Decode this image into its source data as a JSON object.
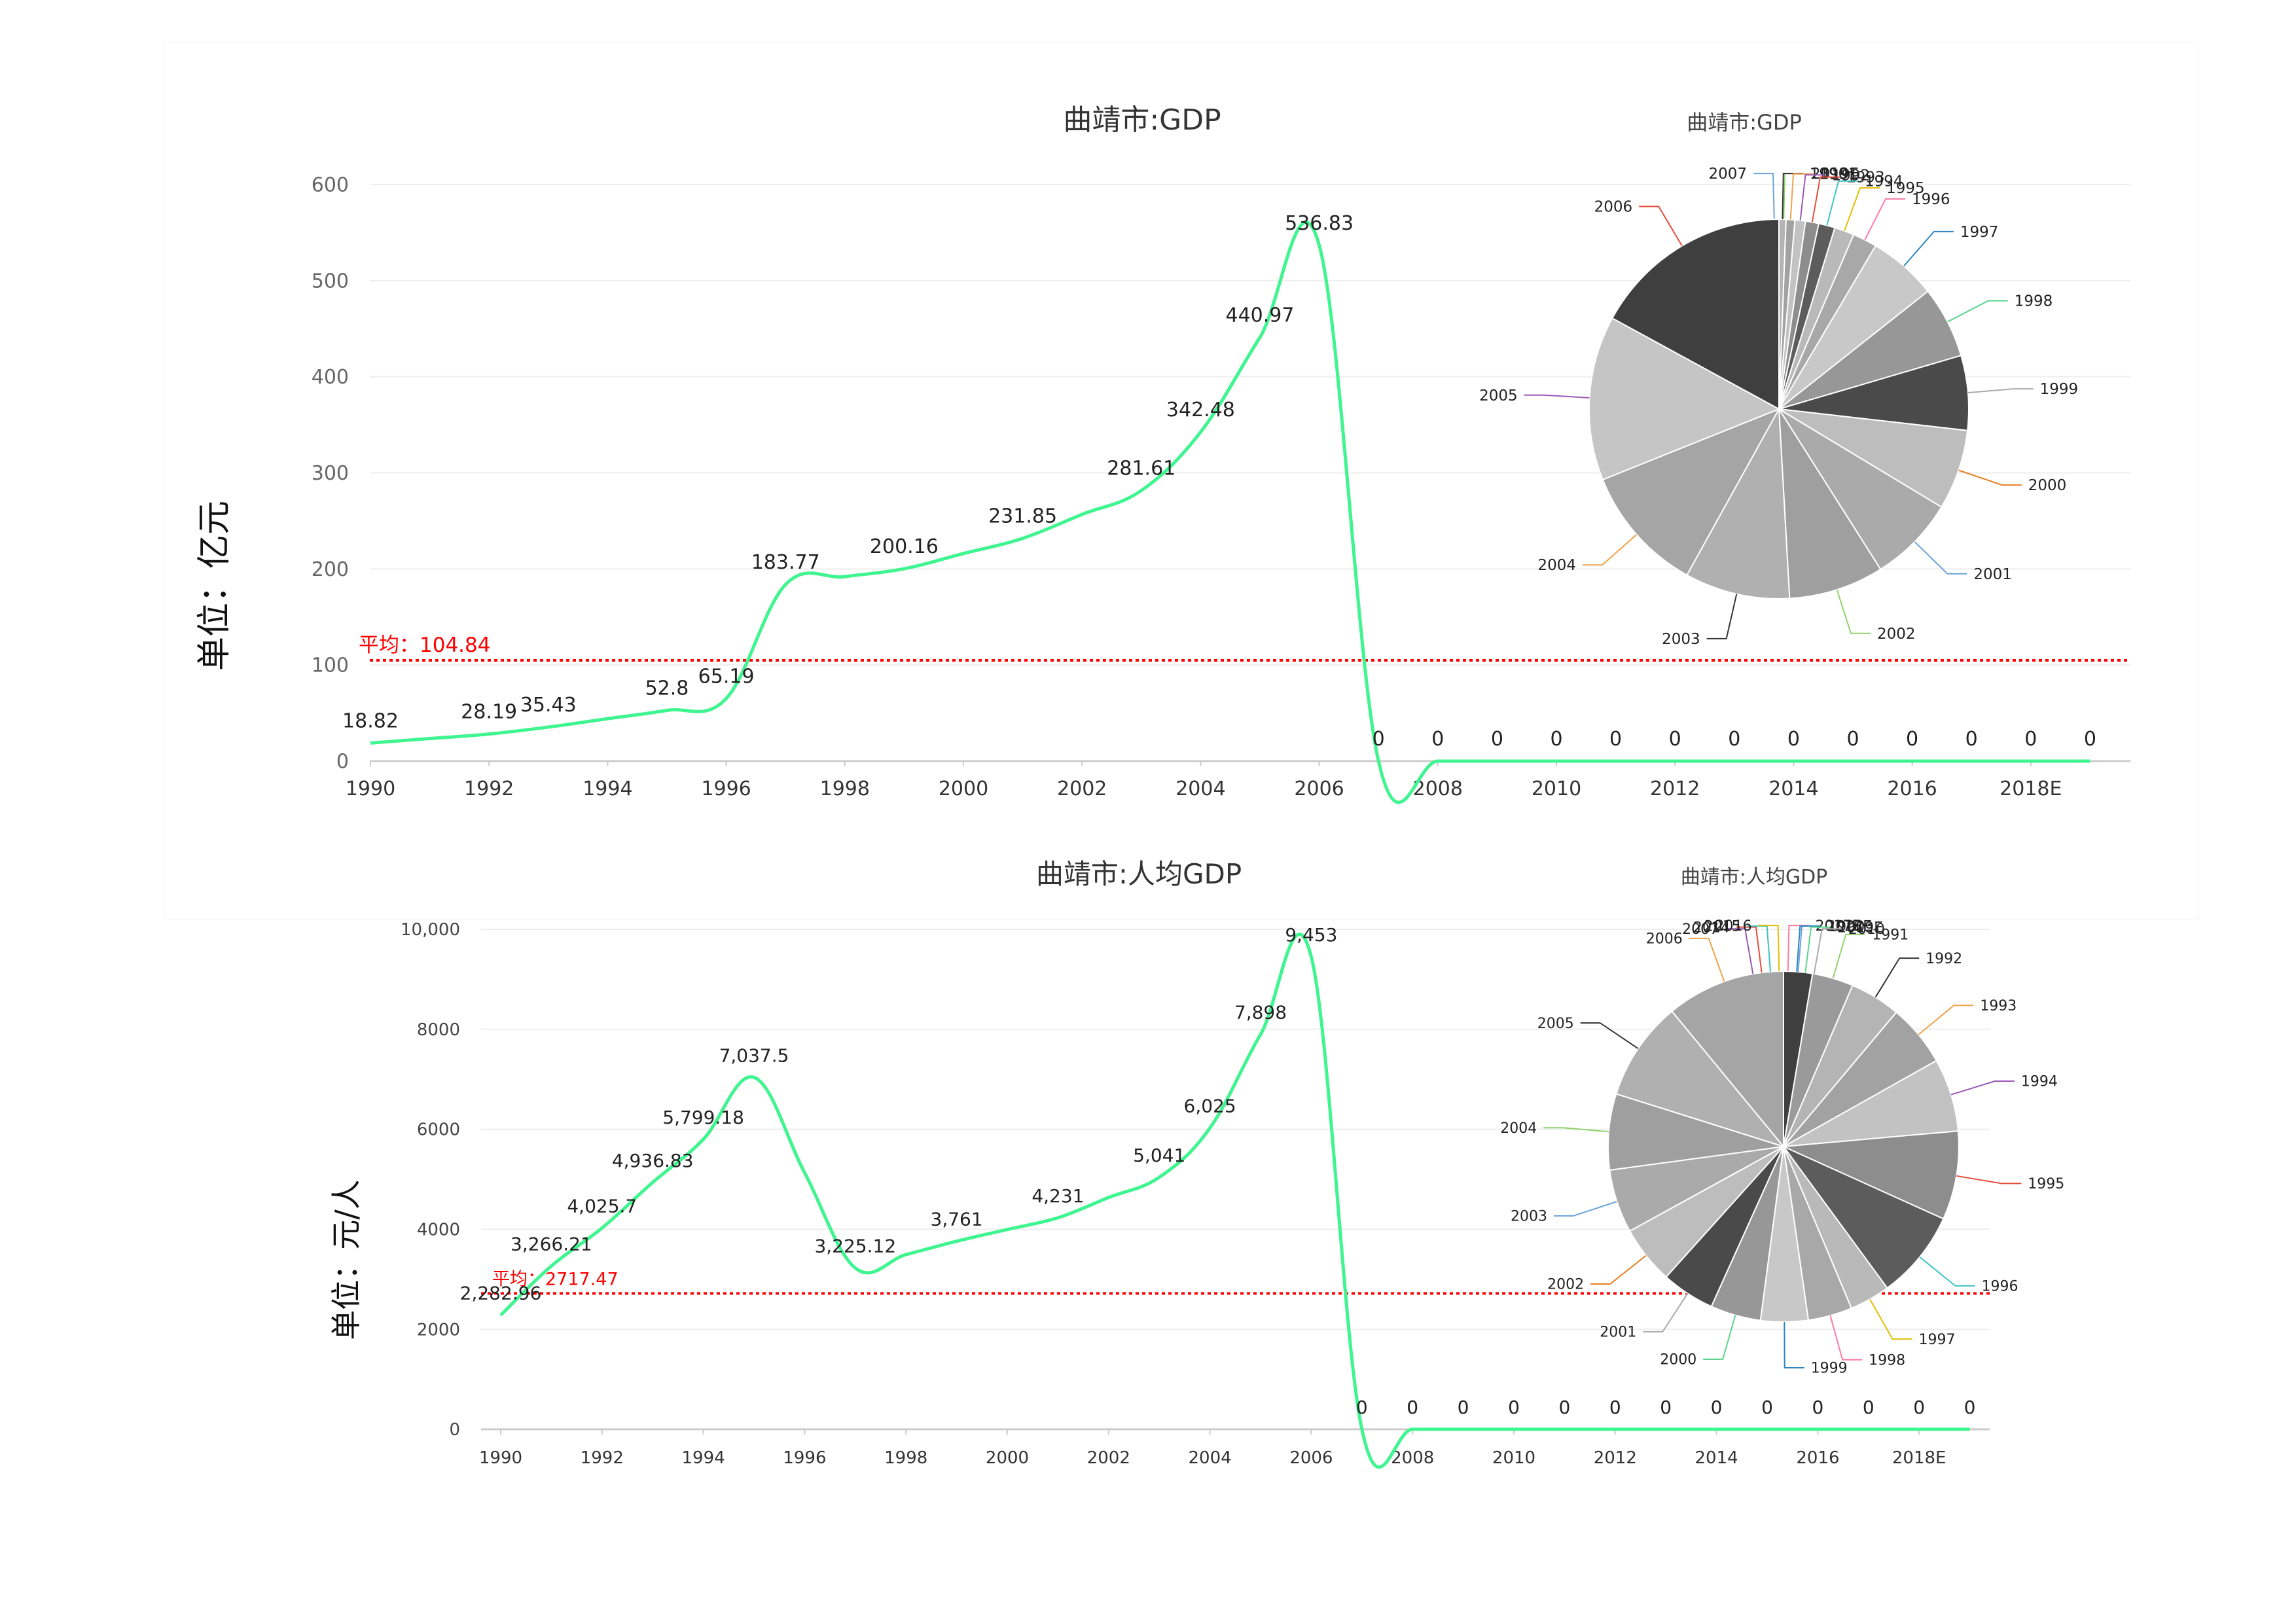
{
  "chart_data": [
    {
      "type": "line",
      "title": "曲靖市:GDP",
      "ylabel": "单位：亿元",
      "xlabel": "",
      "x": [
        "1990",
        "1991",
        "1992",
        "1993",
        "1994",
        "1995",
        "1996",
        "1997",
        "1998",
        "1999",
        "2000",
        "2001",
        "2002",
        "2003",
        "2004",
        "2005",
        "2006",
        "2007",
        "2008",
        "2009",
        "2010",
        "2011",
        "2012",
        "2013",
        "2014",
        "2015",
        "2016",
        "2017E",
        "2018E",
        "2019E"
      ],
      "values": [
        18.82,
        null,
        28.19,
        35.43,
        null,
        52.8,
        65.19,
        183.77,
        null,
        200.16,
        null,
        231.85,
        null,
        281.61,
        342.48,
        440.97,
        536.83,
        0,
        0,
        0,
        0,
        0,
        0,
        0,
        0,
        0,
        0,
        0,
        0,
        0
      ],
      "labels": [
        "18.82",
        "",
        "28.19",
        "35.43",
        "",
        "52.8",
        "65.19",
        "183.77",
        "",
        "200.16",
        "",
        "231.85",
        "",
        "281.61",
        "342.48",
        "440.97",
        "536.83",
        "0",
        "0",
        "0",
        "0",
        "0",
        "0",
        "0",
        "0",
        "0",
        "0",
        "0",
        "0",
        "0"
      ],
      "x_tick_labels": [
        "1990",
        "1992",
        "1994",
        "1996",
        "1998",
        "2000",
        "2002",
        "2004",
        "2006",
        "2008",
        "2010",
        "2012",
        "2014",
        "2016",
        "2018E"
      ],
      "y_ticks": [
        0,
        100,
        200,
        300,
        400,
        500,
        600
      ],
      "y_tick_labels": [
        "0",
        "100",
        "200",
        "300",
        "400",
        "500",
        "600"
      ],
      "ylim": [
        0,
        600
      ],
      "average": 104.84,
      "average_label": "平均：104.84",
      "grid": true,
      "colors": {
        "line": "#3ef58f",
        "average": "#ff0000"
      },
      "pie": {
        "title": "曲靖市:GDP",
        "labels": [
          "2007",
          "2019E",
          "1990",
          "1991",
          "1992",
          "1993",
          "1994",
          "1995",
          "1996",
          "1997",
          "1998",
          "1999",
          "2000",
          "2001",
          "2002",
          "2003",
          "2004",
          "2005",
          "2006"
        ],
        "values": [
          0,
          0,
          18.82,
          23.5,
          28.19,
          35.43,
          44,
          52.8,
          65.19,
          183.77,
          192,
          200.16,
          215,
          231.85,
          255,
          281.61,
          342.48,
          440.97,
          536.83
        ]
      }
    },
    {
      "type": "line",
      "title": "曲靖市:人均GDP",
      "ylabel": "单位：元/人",
      "xlabel": "",
      "x": [
        "1990",
        "1991",
        "1992",
        "1993",
        "1994",
        "1995",
        "1996",
        "1997",
        "1998",
        "1999",
        "2000",
        "2001",
        "2002",
        "2003",
        "2004",
        "2005",
        "2006",
        "2007",
        "2008",
        "2009",
        "2010",
        "2011",
        "2012",
        "2013",
        "2014",
        "2015",
        "2016",
        "2017E",
        "2018E",
        "2019E"
      ],
      "values": [
        2282.96,
        3266.21,
        4025.7,
        4936.83,
        5799.18,
        7037.5,
        null,
        3225.12,
        null,
        3761,
        null,
        4231,
        null,
        5041,
        6025,
        7898,
        9453,
        0,
        0,
        0,
        0,
        0,
        0,
        0,
        0,
        0,
        0,
        0,
        0,
        0
      ],
      "labels": [
        "2,282.96",
        "3,266.21",
        "4,025.7",
        "4,936.83",
        "5,799.18",
        "7,037.5",
        "",
        "3,225.12",
        "",
        "3,761",
        "",
        "4,231",
        "",
        "5,041",
        "6,025",
        "7,898",
        "9,453",
        "0",
        "0",
        "0",
        "0",
        "0",
        "0",
        "0",
        "0",
        "0",
        "0",
        "0",
        "0",
        "0"
      ],
      "x_tick_labels": [
        "1990",
        "1992",
        "1994",
        "1996",
        "1998",
        "2000",
        "2002",
        "2004",
        "2006",
        "2008",
        "2010",
        "2012",
        "2014",
        "2016",
        "2018E"
      ],
      "y_ticks": [
        0,
        2000,
        4000,
        6000,
        8000,
        10000
      ],
      "y_tick_labels": [
        "0",
        "2000",
        "4000",
        "6000",
        "8000",
        "10,000"
      ],
      "ylim": [
        0,
        10000
      ],
      "average": 2717.47,
      "average_label": "平均：2717.47",
      "grid": true,
      "colors": {
        "line": "#3ef58f",
        "average": "#ff0000"
      },
      "pie": {
        "title": "曲靖市:人均GDP",
        "labels": [
          "1990",
          "1991",
          "1992",
          "1993",
          "1994",
          "1995",
          "1996",
          "1997",
          "1998",
          "1999",
          "2000",
          "2001",
          "2002",
          "2003",
          "2004",
          "2005",
          "2006",
          "2007",
          "2014",
          "2015",
          "2016",
          "2017E",
          "2018E",
          "2019E",
          "2010"
        ],
        "values": [
          2282.96,
          3266.21,
          4025.7,
          4936.83,
          5799.18,
          7037.5,
          7037.5,
          3225.12,
          3500,
          3761,
          4000,
          4231,
          4600,
          5041,
          6025,
          7898,
          9453,
          0,
          0,
          0,
          0,
          0,
          0,
          0,
          0
        ]
      }
    }
  ]
}
